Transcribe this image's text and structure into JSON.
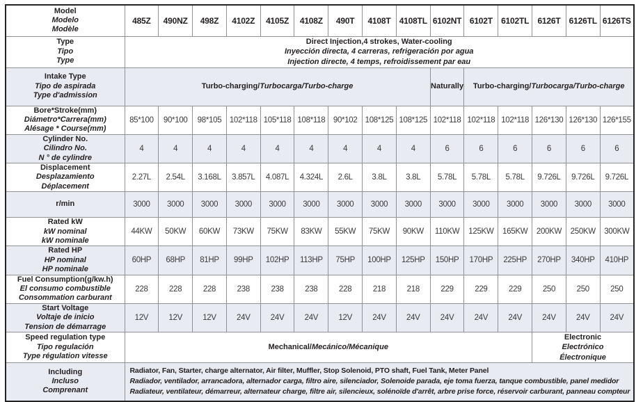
{
  "colors": {
    "shaded_row": "#e8ebf2",
    "inner_border": "#8f9194",
    "outer_border": "#222222",
    "label_text": "#231f20",
    "value_text": "#3a3a3a"
  },
  "table": {
    "columns": [
      "485Z",
      "490NZ",
      "498Z",
      "4102Z",
      "4105Z",
      "4108Z",
      "490T",
      "4108T",
      "4108TL",
      "6102NT",
      "6102T",
      "6102TL",
      "6126T",
      "6126TL",
      "6126TS"
    ],
    "rows": [
      {
        "id": "model",
        "shaded": false,
        "label_lines": [
          {
            "t": "Model"
          },
          {
            "t": "Modelo",
            "italic": true
          },
          {
            "t": "Modèle",
            "italic": true
          }
        ],
        "content": {
          "kind": "columns"
        }
      },
      {
        "id": "type",
        "shaded": false,
        "label_lines": [
          {
            "t": "Type"
          },
          {
            "t": "Tipo",
            "italic": true
          },
          {
            "t": "Type",
            "italic": true
          }
        ],
        "content": {
          "kind": "merged",
          "cells": [
            {
              "span": 15,
              "align": "center",
              "lines": [
                [
                  {
                    "t": "Direct Injection,4 strokes, Water-cooling"
                  }
                ],
                [
                  {
                    "t": "Inyección directa, 4 carreras, refrigeración por agua",
                    "italic": true
                  }
                ],
                [
                  {
                    "t": "Injection directe, 4 temps, refroidissement par eau",
                    "italic": true
                  }
                ]
              ]
            }
          ]
        }
      },
      {
        "id": "intake",
        "shaded": true,
        "label_lines": [
          {
            "t": "Intake Type"
          },
          {
            "t": "Tipo de aspirada",
            "italic": true
          },
          {
            "t": "Type d'admission",
            "italic": true
          }
        ],
        "content": {
          "kind": "merged",
          "cells": [
            {
              "span": 9,
              "align": "center",
              "lines": [
                [
                  {
                    "t": "Turbo-charging/"
                  },
                  {
                    "t": "Turbocarga/Turbo-charge",
                    "italic": true
                  }
                ]
              ]
            },
            {
              "span": 1,
              "align": "center",
              "lines": [
                [
                  {
                    "t": "Naturally"
                  }
                ]
              ]
            },
            {
              "span": 5,
              "align": "center",
              "lines": [
                [
                  {
                    "t": "Turbo-charging/"
                  },
                  {
                    "t": "Turbocarga/Turbo-charge",
                    "italic": true
                  }
                ]
              ]
            }
          ]
        }
      },
      {
        "id": "bore",
        "shaded": false,
        "label_lines": [
          {
            "t": "Bore*Stroke(mm)"
          },
          {
            "t": "Diámetro*Carrera(mm)",
            "italic": true
          },
          {
            "t": "Alésage * Course(mm)",
            "italic": true
          }
        ],
        "content": {
          "kind": "values",
          "values": [
            "85*100",
            "90*100",
            "98*105",
            "102*118",
            "105*118",
            "108*118",
            "90*102",
            "108*125",
            "108*125",
            "102*118",
            "102*118",
            "102*118",
            "126*130",
            "126*130",
            "126*155"
          ]
        }
      },
      {
        "id": "cylinder",
        "shaded": true,
        "label_lines": [
          {
            "t": "Cylinder No."
          },
          {
            "t": "Cilindro No.",
            "italic": true
          },
          {
            "t": "N ° de cylindre",
            "italic": true
          }
        ],
        "content": {
          "kind": "values",
          "values": [
            "4",
            "4",
            "4",
            "4",
            "4",
            "4",
            "4",
            "4",
            "4",
            "6",
            "6",
            "6",
            "6",
            "6",
            "6"
          ]
        }
      },
      {
        "id": "displacement",
        "shaded": false,
        "label_lines": [
          {
            "t": "Displacement"
          },
          {
            "t": "Desplazamiento",
            "italic": true
          },
          {
            "t": "Déplacement",
            "italic": true
          }
        ],
        "content": {
          "kind": "values",
          "values": [
            "2.27L",
            "2.54L",
            "3.168L",
            "3.857L",
            "4.087L",
            "4.324L",
            "2.6L",
            "3.8L",
            "3.8L",
            "5.78L",
            "5.78L",
            "5.78L",
            "9.726L",
            "9.726L",
            "9.726L"
          ]
        }
      },
      {
        "id": "rmin",
        "shaded": true,
        "label_lines": [
          {
            "t": "r/min"
          }
        ],
        "content": {
          "kind": "values",
          "values": [
            "3000",
            "3000",
            "3000",
            "3000",
            "3000",
            "3000",
            "3000",
            "3000",
            "3000",
            "3000",
            "3000",
            "3000",
            "3000",
            "3000",
            "3000"
          ]
        }
      },
      {
        "id": "kw",
        "shaded": false,
        "label_lines": [
          {
            "t": "Rated kW"
          },
          {
            "t": "kW nominal",
            "italic": true
          },
          {
            "t": "kW nominale",
            "italic": true
          }
        ],
        "content": {
          "kind": "values",
          "values": [
            "44KW",
            "50KW",
            "60KW",
            "73KW",
            "75KW",
            "83KW",
            "55KW",
            "75KW",
            "90KW",
            "110KW",
            "125KW",
            "165KW",
            "200KW",
            "250KW",
            "300KW"
          ]
        }
      },
      {
        "id": "hp",
        "shaded": true,
        "label_lines": [
          {
            "t": "Rated HP"
          },
          {
            "t": "HP nominal",
            "italic": true
          },
          {
            "t": "HP nominale",
            "italic": true
          }
        ],
        "content": {
          "kind": "values",
          "values": [
            "60HP",
            "68HP",
            "81HP",
            "99HP",
            "102HP",
            "113HP",
            "75HP",
            "100HP",
            "125HP",
            "150HP",
            "170HP",
            "225HP",
            "270HP",
            "340HP",
            "410HP"
          ]
        }
      },
      {
        "id": "fuel",
        "shaded": false,
        "label_lines": [
          {
            "t": "Fuel Consumption(g/kw.h)"
          },
          {
            "t": "El consumo combustible",
            "italic": true
          },
          {
            "t": "Consommation carburant",
            "italic": true
          }
        ],
        "content": {
          "kind": "values",
          "values": [
            "228",
            "228",
            "228",
            "238",
            "238",
            "238",
            "228",
            "218",
            "218",
            "229",
            "229",
            "229",
            "250",
            "250",
            "250"
          ]
        }
      },
      {
        "id": "voltage",
        "shaded": true,
        "label_lines": [
          {
            "t": "Start Voltage"
          },
          {
            "t": "Voltaje de inicio",
            "italic": true
          },
          {
            "t": "Tension de démarrage",
            "italic": true
          }
        ],
        "content": {
          "kind": "values",
          "values": [
            "12V",
            "12V",
            "12V",
            "24V",
            "24V",
            "24V",
            "12V",
            "24V",
            "24V",
            "24V",
            "24V",
            "24V",
            "24V",
            "24V",
            "24V"
          ]
        }
      },
      {
        "id": "speed",
        "shaded": false,
        "label_lines": [
          {
            "t": "Speed regulation type"
          },
          {
            "t": "Tipo regulación",
            "italic": true
          },
          {
            "t": "Type régulation vitesse",
            "italic": true
          }
        ],
        "content": {
          "kind": "merged",
          "cells": [
            {
              "span": 12,
              "align": "center",
              "lines": [
                [
                  {
                    "t": "Mechanical/"
                  },
                  {
                    "t": "Mecánico/Mécanique",
                    "italic": true
                  }
                ]
              ]
            },
            {
              "span": 3,
              "align": "center",
              "lines": [
                [
                  {
                    "t": "Electronic"
                  }
                ],
                [
                  {
                    "t": "Electrónico",
                    "italic": true
                  }
                ],
                [
                  {
                    "t": "Électronique",
                    "italic": true
                  }
                ]
              ]
            }
          ]
        }
      },
      {
        "id": "including",
        "shaded": true,
        "label_lines": [
          {
            "t": "Including"
          },
          {
            "t": "Incluso",
            "italic": true
          },
          {
            "t": "Comprenant",
            "italic": true
          }
        ],
        "content": {
          "kind": "merged",
          "cells": [
            {
              "span": 15,
              "align": "left",
              "lines": [
                [
                  {
                    "t": "Radiator, Fan, Starter, charge alternator, Air filter, Muffler, Stop Solenoid, PTO shaft, Fuel Tank, Meter Panel"
                  }
                ],
                [
                  {
                    "t": "Radiador, ventilador, arrancadora, alternador carga, filtro aire, silenciador, Solenoide parada, eje toma fuerza, tanque combustible, panel medidor",
                    "italic": true
                  }
                ],
                [
                  {
                    "t": "Radiateur, ventilateur, démarreur, alternateur charge, filtre air, silencieux, solénoïde d'arrêt, arbre prise force, réservoir carburant, panneau compteur",
                    "italic": true
                  }
                ]
              ]
            }
          ]
        }
      }
    ]
  }
}
